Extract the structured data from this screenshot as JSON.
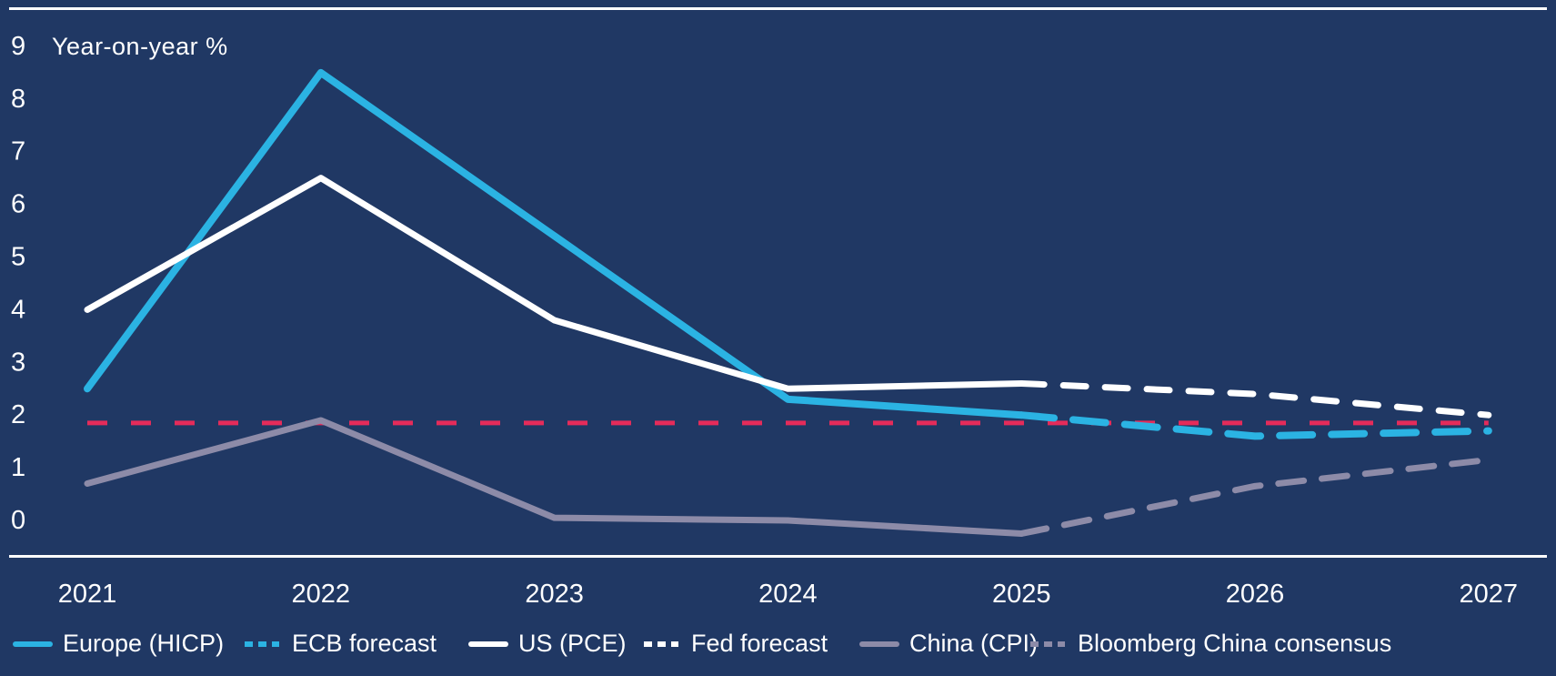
{
  "chart_data": {
    "type": "line",
    "title": "",
    "ylabel": "Year-on-year %",
    "xlabel": "",
    "x_years": [
      2021,
      2022,
      2023,
      2024,
      2025,
      2026,
      2027
    ],
    "yticks": [
      0,
      1,
      2,
      3,
      4,
      5,
      6,
      7,
      8,
      9
    ],
    "ylim": [
      -0.7,
      9.7
    ],
    "grid": false,
    "legend_position": "bottom",
    "colors": {
      "background": "#203864",
      "axis": "#ffffff",
      "text": "#ffffff",
      "europe": "#2bb3e3",
      "us": "#ffffff",
      "china": "#8d8ba8",
      "target": "#e52b5a"
    },
    "series": [
      {
        "name": "Europe (HICP)",
        "style": "solid",
        "color": "#2bb3e3",
        "width": 8,
        "x": [
          2021,
          2022,
          2023,
          2024,
          2025
        ],
        "values": [
          2.5,
          8.5,
          5.4,
          2.3,
          2.0
        ]
      },
      {
        "name": "ECB forecast",
        "style": "dashed",
        "color": "#2bb3e3",
        "width": 8,
        "dash": "36 21",
        "x": [
          2025,
          2026,
          2027
        ],
        "values": [
          2.0,
          1.6,
          1.7
        ]
      },
      {
        "name": "US (PCE)",
        "style": "solid",
        "color": "#ffffff",
        "width": 7,
        "x": [
          2021,
          2022,
          2023,
          2024,
          2025
        ],
        "values": [
          4.0,
          6.5,
          3.8,
          2.5,
          2.6
        ]
      },
      {
        "name": "Fed forecast",
        "style": "dashed",
        "color": "#ffffff",
        "width": 7,
        "dash": "25 21",
        "x": [
          2025,
          2026,
          2027
        ],
        "values": [
          2.6,
          2.4,
          2.0
        ]
      },
      {
        "name": "China (CPI)",
        "style": "solid",
        "color": "#8d8ba8",
        "width": 7,
        "x": [
          2021,
          2022,
          2023,
          2024,
          2025
        ],
        "values": [
          0.7,
          1.9,
          0.05,
          0.0,
          -0.25
        ]
      },
      {
        "name": "Bloomberg China consensus",
        "style": "dashed",
        "color": "#8d8ba8",
        "width": 7,
        "dash": "28 20",
        "x": [
          2025,
          2026,
          2027
        ],
        "values": [
          -0.25,
          0.65,
          1.15
        ]
      }
    ],
    "reference_line": {
      "value": 1.85,
      "style": "dashed",
      "color": "#e52b5a"
    }
  },
  "legend_layout": {
    "item_lefts": [
      14,
      266,
      515,
      705,
      945,
      1130
    ]
  }
}
